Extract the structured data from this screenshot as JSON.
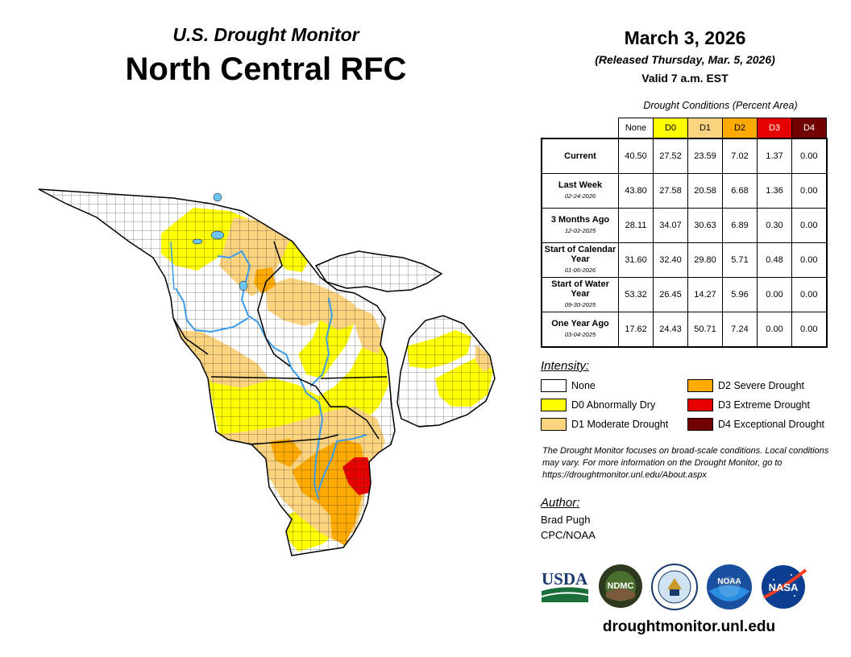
{
  "header": {
    "subtitle": "U.S. Drought Monitor",
    "title": "North Central RFC"
  },
  "date": {
    "main": "March 3, 2026",
    "released": "(Released Thursday, Mar. 5, 2026)",
    "valid": "Valid 7 a.m. EST"
  },
  "table": {
    "caption": "Drought Conditions (Percent Area)",
    "columns": [
      {
        "label": "None",
        "color": "#ffffff",
        "text_color": "#000000"
      },
      {
        "label": "D0",
        "color": "#ffff00",
        "text_color": "#000000"
      },
      {
        "label": "D1",
        "color": "#fcd37f",
        "text_color": "#000000"
      },
      {
        "label": "D2",
        "color": "#ffaa00",
        "text_color": "#000000"
      },
      {
        "label": "D3",
        "color": "#e60000",
        "text_color": "#ffffff"
      },
      {
        "label": "D4",
        "color": "#730000",
        "text_color": "#ffffff"
      }
    ],
    "rows": [
      {
        "label": "Current",
        "date": "",
        "values": [
          "40.50",
          "27.52",
          "23.59",
          "7.02",
          "1.37",
          "0.00"
        ]
      },
      {
        "label": "Last Week",
        "date": "02-24-2026",
        "values": [
          "43.80",
          "27.58",
          "20.58",
          "6.68",
          "1.36",
          "0.00"
        ]
      },
      {
        "label": "3 Months Ago",
        "date": "12-02-2025",
        "values": [
          "28.11",
          "34.07",
          "30.63",
          "6.89",
          "0.30",
          "0.00"
        ]
      },
      {
        "label": "Start of Calendar Year",
        "date": "01-06-2026",
        "values": [
          "31.60",
          "32.40",
          "29.80",
          "5.71",
          "0.48",
          "0.00"
        ]
      },
      {
        "label": "Start of Water Year",
        "date": "09-30-2025",
        "values": [
          "53.32",
          "26.45",
          "14.27",
          "5.96",
          "0.00",
          "0.00"
        ]
      },
      {
        "label": "One Year Ago",
        "date": "03-04-2025",
        "values": [
          "17.62",
          "24.43",
          "50.71",
          "7.24",
          "0.00",
          "0.00"
        ]
      }
    ]
  },
  "legend": {
    "heading": "Intensity:",
    "items": [
      {
        "label": "None",
        "color": "#ffffff"
      },
      {
        "label": "D0 Abnormally Dry",
        "color": "#ffff00"
      },
      {
        "label": "D1 Moderate Drought",
        "color": "#fcd37f"
      },
      {
        "label": "D2 Severe Drought",
        "color": "#ffaa00"
      },
      {
        "label": "D3 Extreme Drought",
        "color": "#e60000"
      },
      {
        "label": "D4 Exceptional Drought",
        "color": "#730000"
      }
    ]
  },
  "note": "The Drought Monitor focuses on broad-scale conditions. Local conditions may vary. For more information on the Drought Monitor, go to https://droughtmonitor.unl.edu/About.aspx",
  "author": {
    "heading": "Author:",
    "name": "Brad Pugh",
    "org": "CPC/NOAA"
  },
  "logos": {
    "usda": "USDA",
    "ndmc": "NDMC",
    "noaa": "NOAA",
    "nasa": "NASA"
  },
  "footer": {
    "website": "droughtmonitor.unl.edu"
  },
  "map": {
    "region": "North Central RFC",
    "colors": {
      "none": "#ffffff",
      "d0": "#ffff00",
      "d1": "#fcd37f",
      "d2": "#ffaa00",
      "d3": "#e60000",
      "water": "#6ec6f0",
      "river": "#3a9be8"
    }
  }
}
